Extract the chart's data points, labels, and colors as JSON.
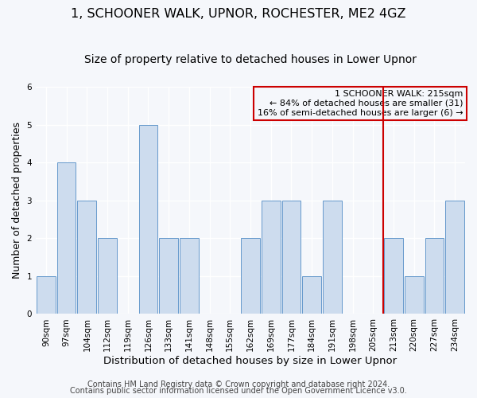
{
  "title": "1, SCHOONER WALK, UPNOR, ROCHESTER, ME2 4GZ",
  "subtitle": "Size of property relative to detached houses in Lower Upnor",
  "xlabel": "Distribution of detached houses by size in Lower Upnor",
  "ylabel": "Number of detached properties",
  "categories": [
    "90sqm",
    "97sqm",
    "104sqm",
    "112sqm",
    "119sqm",
    "126sqm",
    "133sqm",
    "141sqm",
    "148sqm",
    "155sqm",
    "162sqm",
    "169sqm",
    "177sqm",
    "184sqm",
    "191sqm",
    "198sqm",
    "205sqm",
    "213sqm",
    "220sqm",
    "227sqm",
    "234sqm"
  ],
  "values": [
    1,
    4,
    3,
    2,
    0,
    5,
    2,
    2,
    0,
    0,
    2,
    3,
    3,
    1,
    3,
    0,
    0,
    2,
    1,
    2,
    3
  ],
  "bar_color": "#cddcee",
  "bar_edge_color": "#6699cc",
  "highlight_index": 17,
  "highlight_line_color": "#cc0000",
  "legend_title": "1 SCHOONER WALK: 215sqm",
  "legend_line1": "← 84% of detached houses are smaller (31)",
  "legend_line2": "16% of semi-detached houses are larger (6) →",
  "legend_box_color": "#cc0000",
  "footer_line1": "Contains HM Land Registry data © Crown copyright and database right 2024.",
  "footer_line2": "Contains public sector information licensed under the Open Government Licence v3.0.",
  "ylim": [
    0,
    6
  ],
  "yticks": [
    0,
    1,
    2,
    3,
    4,
    5,
    6
  ],
  "background_color": "#f5f7fb",
  "grid_color": "#ffffff",
  "title_fontsize": 11.5,
  "subtitle_fontsize": 10,
  "ylabel_fontsize": 9,
  "xlabel_fontsize": 9.5,
  "tick_fontsize": 7.5,
  "footer_fontsize": 7
}
